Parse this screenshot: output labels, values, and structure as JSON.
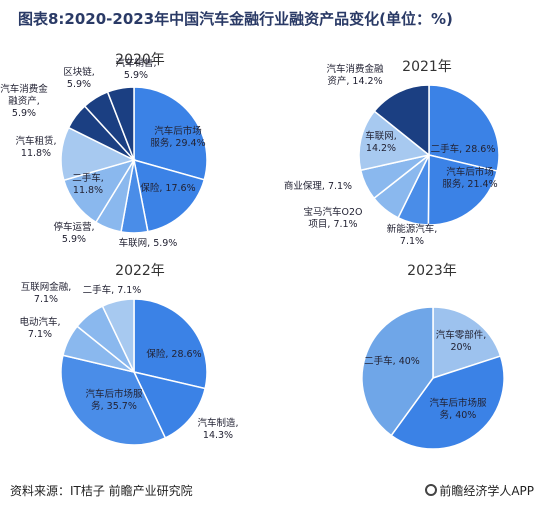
{
  "title": "图表8:2020-2023年中国汽车金融行业融资产品变化(单位：%)",
  "footer": {
    "source": "资料来源：IT桔子 前瞻产业研究院",
    "brand": "前瞻经济学人APP"
  },
  "colors": {
    "dark_navy": "#1b3f82",
    "blue_main": "#3b82e6",
    "blue_mid": "#4a8de8",
    "blue_light": "#8ab8ee",
    "blue_pale": "#a7c9f0",
    "blue_2023_large": "#5598e9",
    "blue_2023_light": "#6fa6e8",
    "blue_2023_pale": "#9dc2ee",
    "slice_border": "#ffffff",
    "title_color": "#2a3a66"
  },
  "chart_data": [
    {
      "type": "pie",
      "title": "2020年",
      "slices": [
        {
          "label": "汽车后市场服务, 29.4%",
          "value": 29.4,
          "color": "#3b82e6"
        },
        {
          "label": "保险, 17.6%",
          "value": 17.6,
          "color": "#3b82e6"
        },
        {
          "label": "车联网, 5.9%",
          "value": 5.9,
          "color": "#4a8de8"
        },
        {
          "label": "停车运营, 5.9%",
          "value": 5.9,
          "color": "#8ab8ee"
        },
        {
          "label": "二手车, 11.8%",
          "value": 11.8,
          "color": "#8ab8ee"
        },
        {
          "label": "汽车租赁, 11.8%",
          "value": 11.8,
          "color": "#a7c9f0"
        },
        {
          "label": "汽车消费金融资产, 5.9%",
          "value": 5.9,
          "color": "#1b3f82"
        },
        {
          "label": "区块链, 5.9%",
          "value": 5.9,
          "color": "#1b3f82"
        },
        {
          "label": "汽车销售, 5.9%",
          "value": 5.9,
          "color": "#1b3f82"
        }
      ]
    },
    {
      "type": "pie",
      "title": "2021年",
      "slices": [
        {
          "label": "二手车, 28.6%",
          "value": 28.6,
          "color": "#3b82e6"
        },
        {
          "label": "汽车后市场服务, 21.4%",
          "value": 21.4,
          "color": "#3b82e6"
        },
        {
          "label": "新能源汽车, 7.1%",
          "value": 7.1,
          "color": "#4a8de8"
        },
        {
          "label": "宝马汽车O2O项目, 7.1%",
          "value": 7.1,
          "color": "#8ab8ee"
        },
        {
          "label": "商业保理, 7.1%",
          "value": 7.1,
          "color": "#8ab8ee"
        },
        {
          "label": "车联网, 14.2%",
          "value": 14.2,
          "color": "#a7c9f0"
        },
        {
          "label": "汽车消费金融资产, 14.2%",
          "value": 14.2,
          "color": "#1b3f82"
        }
      ]
    },
    {
      "type": "pie",
      "title": "2022年",
      "slices": [
        {
          "label": "保险, 28.6%",
          "value": 28.6,
          "color": "#3b82e6"
        },
        {
          "label": "汽车制造, 14.3%",
          "value": 14.3,
          "color": "#3b82e6"
        },
        {
          "label": "汽车后市场服务, 35.7%",
          "value": 35.7,
          "color": "#4a8de8"
        },
        {
          "label": "电动汽车, 7.1%",
          "value": 7.1,
          "color": "#8ab8ee"
        },
        {
          "label": "互联网金融, 7.1%",
          "value": 7.1,
          "color": "#8ab8ee"
        },
        {
          "label": "二手车, 7.1%",
          "value": 7.1,
          "color": "#a7c9f0"
        }
      ]
    },
    {
      "type": "pie",
      "title": "2023年",
      "slices": [
        {
          "label": "汽车零部件, 20%",
          "value": 20,
          "color": "#9dc2ee"
        },
        {
          "label": "汽车后市场服务, 40%",
          "value": 40,
          "color": "#3b82e6"
        },
        {
          "label": "二手车, 40%",
          "value": 40,
          "color": "#6fa6e8"
        }
      ]
    }
  ]
}
